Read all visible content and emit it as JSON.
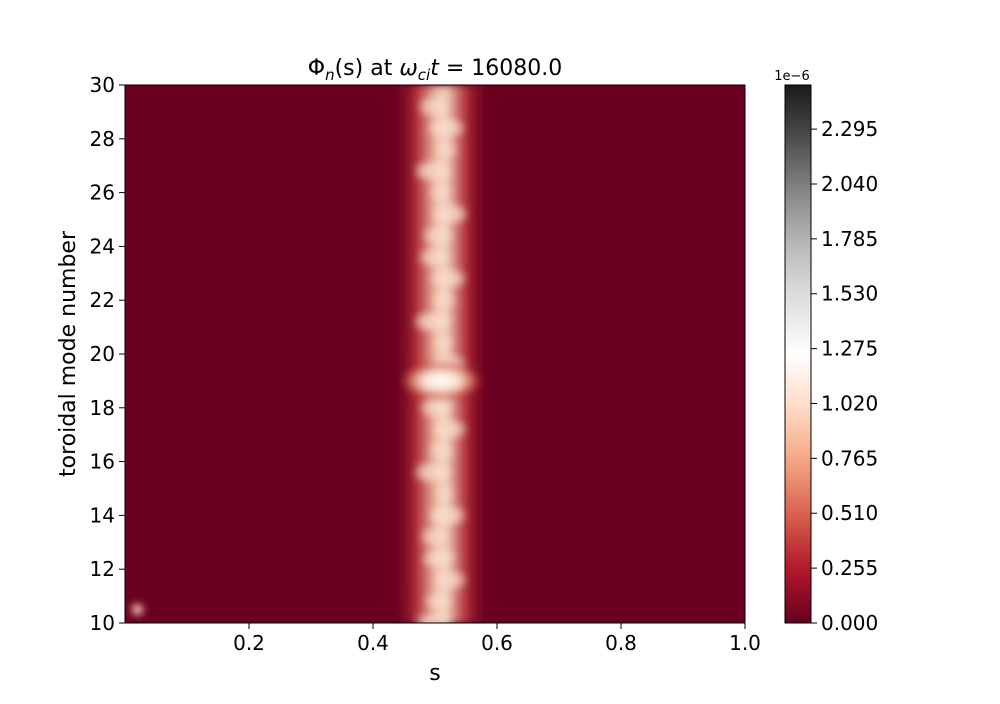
{
  "chart_data": {
    "type": "heatmap",
    "title": "Φn(s) at ωcit = 16080.0",
    "title_parts": {
      "phi": "Φ",
      "n": "n",
      "s": "(s)",
      "at": " at ",
      "omega": "ω",
      "ci": "ci",
      "t": "t",
      "eq": " = ",
      "value": "16080.0"
    },
    "xlabel": "s",
    "ylabel": "toroidal mode number",
    "xlim": [
      0.0,
      1.0
    ],
    "ylim": [
      10,
      30
    ],
    "x_ticks": [
      "0.2",
      "0.4",
      "0.6",
      "0.8",
      "1.0"
    ],
    "x_tick_values": [
      0.2,
      0.4,
      0.6,
      0.8,
      1.0
    ],
    "y_ticks": [
      "10",
      "12",
      "14",
      "16",
      "18",
      "20",
      "22",
      "24",
      "26",
      "28",
      "30"
    ],
    "y_tick_values": [
      10,
      12,
      14,
      16,
      18,
      20,
      22,
      24,
      26,
      28,
      30
    ],
    "colorbar": {
      "colormap": "RdGy_r",
      "range": [
        0.0,
        2.5e-06
      ],
      "offset_label": "1e−6",
      "ticks": [
        "0.000",
        "0.255",
        "0.510",
        "0.765",
        "1.020",
        "1.275",
        "1.530",
        "1.785",
        "2.040",
        "2.295"
      ],
      "tick_values": [
        0.0,
        0.255,
        0.51,
        0.765,
        1.02,
        1.275,
        1.53,
        1.785,
        2.04,
        2.295
      ]
    },
    "features": [
      {
        "description": "bright vertical band",
        "s_center": 0.51,
        "s_width": 0.05,
        "n_range": [
          10,
          30
        ],
        "peak": 1.1e-06
      },
      {
        "description": "hotspot",
        "s": 0.51,
        "n": 19,
        "peak": 1.3e-06
      },
      {
        "description": "small hotspot",
        "s": 0.02,
        "n": 10.5,
        "peak": 1.2e-06
      }
    ]
  }
}
